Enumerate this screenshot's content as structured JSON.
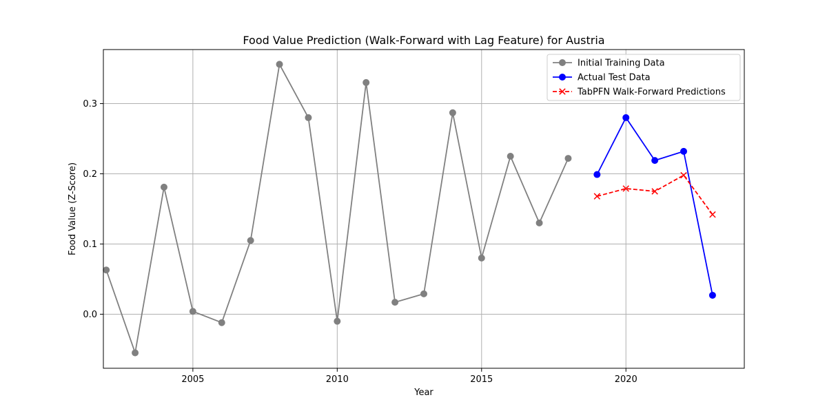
{
  "chart_data": {
    "type": "line",
    "title": "Food Value Prediction (Walk-Forward with Lag Feature) for Austria",
    "xlabel": "Year",
    "ylabel": "Food Value (Z-Score)",
    "xlim": [
      2001.9,
      2024.1
    ],
    "ylim": [
      -0.077,
      0.377
    ],
    "xticks": [
      2005,
      2010,
      2015,
      2020
    ],
    "xtick_labels": [
      "2005",
      "2010",
      "2015",
      "2020"
    ],
    "yticks": [
      0.0,
      0.1,
      0.2,
      0.3
    ],
    "ytick_labels": [
      "0.0",
      "0.1",
      "0.2",
      "0.3"
    ],
    "grid": true,
    "legend_position": "top-right",
    "series": [
      {
        "name": "Initial Training Data",
        "color": "#808080",
        "marker": "circle",
        "linestyle": "solid",
        "x": [
          2002,
          2003,
          2004,
          2005,
          2006,
          2007,
          2008,
          2009,
          2010,
          2011,
          2012,
          2013,
          2014,
          2015,
          2016,
          2017,
          2018
        ],
        "y": [
          0.063,
          -0.055,
          0.181,
          0.004,
          -0.012,
          0.105,
          0.356,
          0.28,
          -0.01,
          0.33,
          0.017,
          0.029,
          0.287,
          0.08,
          0.225,
          0.13,
          0.222
        ]
      },
      {
        "name": "Actual Test Data",
        "color": "#0000ff",
        "marker": "circle",
        "linestyle": "solid",
        "x": [
          2019,
          2020,
          2021,
          2022,
          2023
        ],
        "y": [
          0.199,
          0.28,
          0.219,
          0.232,
          0.027
        ]
      },
      {
        "name": "TabPFN Walk-Forward Predictions",
        "color": "#ff0000",
        "marker": "x",
        "linestyle": "dashed",
        "x": [
          2019,
          2020,
          2021,
          2022,
          2023
        ],
        "y": [
          0.168,
          0.179,
          0.175,
          0.198,
          0.142
        ]
      }
    ]
  }
}
